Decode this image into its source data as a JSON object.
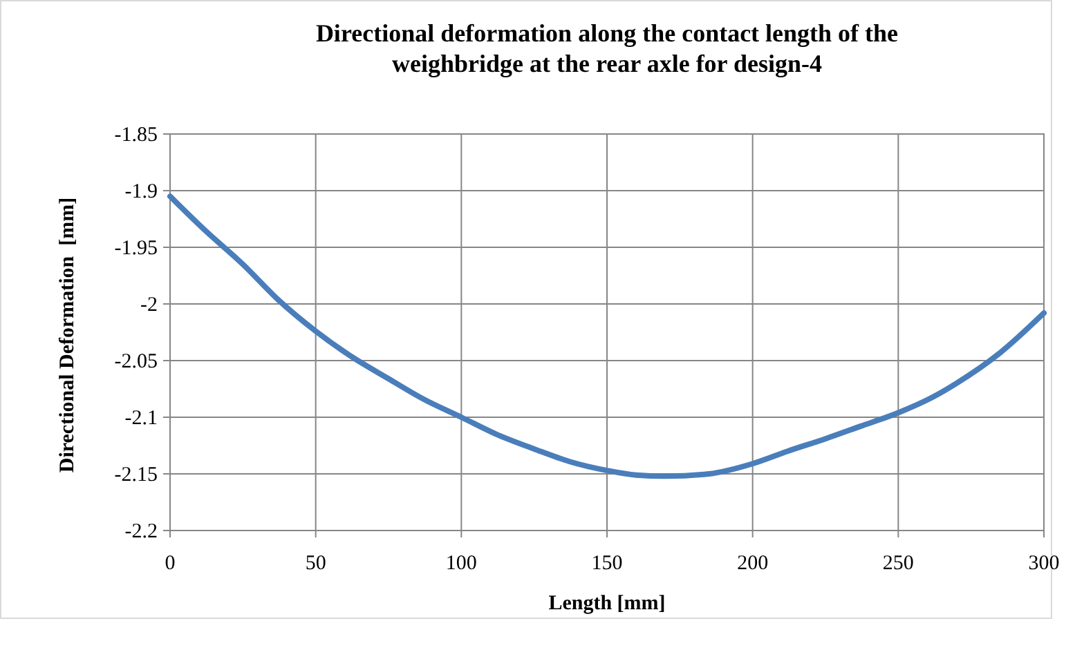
{
  "chart_data": {
    "type": "line",
    "title": "Directional deformation along the contact length of the weighbridge at the rear axle for design-4",
    "xlabel": "Length [mm]",
    "ylabel": "Directional Deformation  [mm]",
    "x": [
      0,
      12,
      25,
      37,
      50,
      62,
      75,
      87,
      100,
      112,
      125,
      137,
      150,
      160,
      170,
      185,
      200,
      212,
      225,
      237,
      250,
      262,
      270,
      285,
      300
    ],
    "series": [
      {
        "color": "#4a7ebb",
        "values": [
          -1.905,
          -1.935,
          -1.965,
          -1.996,
          -2.024,
          -2.046,
          -2.066,
          -2.084,
          -2.1,
          -2.115,
          -2.128,
          -2.139,
          -2.147,
          -2.151,
          -2.152,
          -2.15,
          -2.141,
          -2.13,
          -2.119,
          -2.108,
          -2.096,
          -2.082,
          -2.07,
          -2.043,
          -2.008
        ]
      }
    ],
    "xlim": [
      0,
      300
    ],
    "xticks": [
      0,
      50,
      100,
      150,
      200,
      250,
      300
    ],
    "ylim": [
      -2.2,
      -1.85
    ],
    "yticks": [
      -2.2,
      -2.15,
      -2.1,
      -2.05,
      -2,
      -1.95,
      -1.9,
      -1.85
    ],
    "grid": true,
    "line_style": "solid",
    "marker": "none"
  }
}
